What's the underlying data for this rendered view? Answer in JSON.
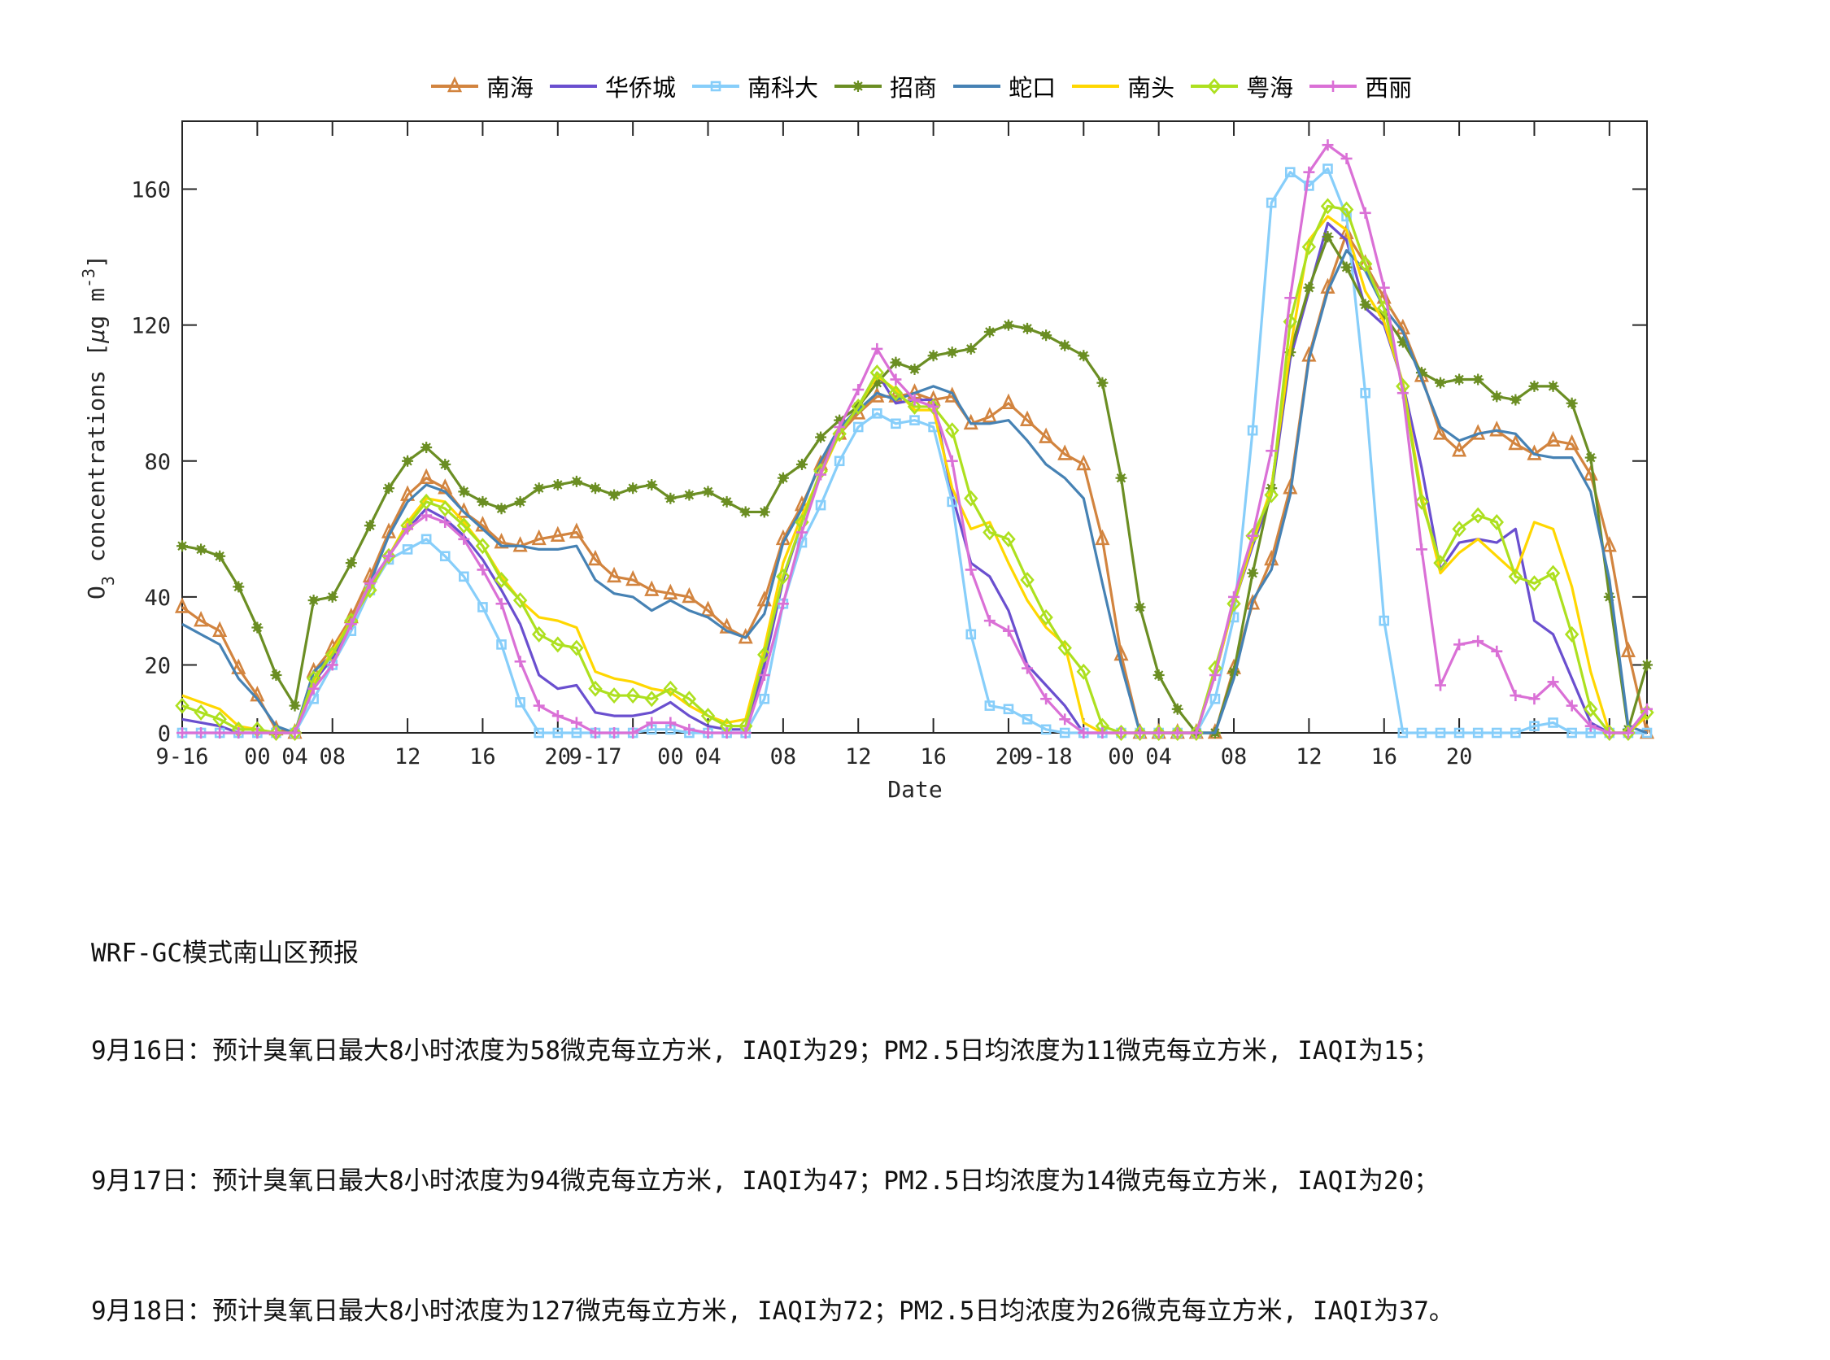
{
  "legend": [
    {
      "name": "南海",
      "color": "#D2843F",
      "marker": "triangle"
    },
    {
      "name": "华侨城",
      "color": "#6A4FCF",
      "marker": "none"
    },
    {
      "name": "南科大",
      "color": "#87CEFA",
      "marker": "square"
    },
    {
      "name": "招商",
      "color": "#6B8E23",
      "marker": "star"
    },
    {
      "name": "蛇口",
      "color": "#4682B4",
      "marker": "none"
    },
    {
      "name": "南头",
      "color": "#FFD700",
      "marker": "none"
    },
    {
      "name": "粤海",
      "color": "#ADE01F",
      "marker": "diamond"
    },
    {
      "name": "西丽",
      "color": "#DA70D6",
      "marker": "plus"
    }
  ],
  "report": {
    "title": "WRF-GC模式南山区预报",
    "lines": [
      "9月16日：预计臭氧日最大8小时浓度为58微克每立方米, IAQI为29；PM2.5日均浓度为11微克每立方米, IAQI为15；",
      "9月17日：预计臭氧日最大8小时浓度为94微克每立方米, IAQI为47；PM2.5日均浓度为14微克每立方米, IAQI为20；",
      "9月18日：预计臭氧日最大8小时浓度为127微克每立方米, IAQI为72；PM2.5日均浓度为26微克每立方米, IAQI为37。"
    ]
  },
  "chart_data": {
    "type": "line",
    "title": "",
    "xlabel": "Date",
    "ylabel": "O3 concentrations [μg m-3]",
    "ylim": [
      0,
      180
    ],
    "yticks": [
      0,
      20,
      40,
      80,
      120,
      160
    ],
    "xlim": [
      0,
      78
    ],
    "xtick_positions": [
      0,
      4,
      8,
      12,
      16,
      20,
      24,
      28,
      32,
      36,
      40,
      44,
      48,
      52,
      56,
      60,
      64,
      68,
      72,
      76
    ],
    "xtick_labels": [
      {
        "x": 0,
        "label": "9-16"
      },
      {
        "x": 4,
        "label": "00"
      },
      {
        "x": 6,
        "label": "04"
      },
      {
        "x": 8,
        "label": "08"
      },
      {
        "x": 12,
        "label": "12"
      },
      {
        "x": 16,
        "label": "16"
      },
      {
        "x": 20,
        "label": "20"
      },
      {
        "x": 22,
        "label": "9-17"
      },
      {
        "x": 26,
        "label": "00"
      },
      {
        "x": 28,
        "label": "04"
      },
      {
        "x": 32,
        "label": "08"
      },
      {
        "x": 36,
        "label": "12"
      },
      {
        "x": 40,
        "label": "16"
      },
      {
        "x": 44,
        "label": "20"
      },
      {
        "x": 46,
        "label": "9-18"
      },
      {
        "x": 50,
        "label": "00"
      },
      {
        "x": 52,
        "label": "04"
      },
      {
        "x": 56,
        "label": "08"
      },
      {
        "x": 60,
        "label": "12"
      },
      {
        "x": 64,
        "label": "16"
      },
      {
        "x": 68,
        "label": "20"
      }
    ],
    "grid": false,
    "legend_position": "top",
    "x": [
      0,
      1,
      2,
      3,
      4,
      5,
      6,
      7,
      8,
      9,
      10,
      11,
      12,
      13,
      14,
      15,
      16,
      17,
      18,
      19,
      20,
      21,
      22,
      23,
      24,
      25,
      26,
      27,
      28,
      29,
      30,
      31,
      32,
      33,
      34,
      35,
      36,
      37,
      38,
      39,
      40,
      41,
      42,
      43,
      44,
      45,
      46,
      47,
      48,
      49,
      50,
      51,
      52,
      53,
      54,
      55,
      56,
      57,
      58,
      59,
      60,
      61,
      62,
      63,
      64,
      65,
      66,
      67,
      68,
      69,
      70,
      71,
      72,
      73,
      74,
      75,
      76,
      77,
      78
    ],
    "series": [
      {
        "name": "南海",
        "values": [
          37,
          33,
          30,
          19,
          11,
          1,
          0,
          18,
          25,
          34,
          46,
          59,
          70,
          75,
          72,
          65,
          61,
          56,
          55,
          57,
          58,
          59,
          51,
          46,
          45,
          42,
          41,
          40,
          36,
          31,
          28,
          39,
          57,
          67,
          79,
          88,
          94,
          99,
          99,
          100,
          98,
          99,
          91,
          93,
          97,
          92,
          87,
          82,
          79,
          57,
          23,
          0,
          0,
          0,
          0,
          0,
          19,
          38,
          51,
          72,
          111,
          131,
          147,
          138,
          128,
          119,
          105,
          88,
          83,
          88,
          89,
          85,
          82,
          86,
          85,
          76,
          55,
          24,
          0
        ]
      },
      {
        "name": "华侨城",
        "values": [
          4,
          3,
          2,
          0,
          0,
          0,
          0,
          15,
          22,
          32,
          44,
          52,
          60,
          66,
          63,
          58,
          51,
          42,
          32,
          17,
          13,
          14,
          6,
          5,
          5,
          6,
          9,
          5,
          2,
          1,
          1,
          20,
          45,
          62,
          77,
          89,
          96,
          106,
          97,
          98,
          98,
          70,
          50,
          46,
          36,
          20,
          14,
          8,
          0,
          0,
          0,
          0,
          0,
          0,
          0,
          17,
          38,
          55,
          70,
          110,
          130,
          150,
          145,
          125,
          120,
          103,
          78,
          48,
          56,
          57,
          56,
          60,
          33,
          29,
          16,
          3,
          0,
          0,
          0
        ]
      },
      {
        "name": "南科大",
        "values": [
          0,
          0,
          0,
          0,
          0,
          0,
          0,
          10,
          20,
          30,
          42,
          51,
          54,
          57,
          52,
          46,
          37,
          26,
          9,
          0,
          0,
          0,
          0,
          0,
          0,
          1,
          1,
          0,
          0,
          0,
          0,
          10,
          38,
          56,
          67,
          80,
          90,
          94,
          91,
          92,
          90,
          68,
          29,
          8,
          7,
          4,
          1,
          0,
          0,
          0,
          0,
          0,
          0,
          0,
          0,
          10,
          34,
          89,
          156,
          165,
          161,
          166,
          152,
          100,
          33,
          0,
          0,
          0,
          0,
          0,
          0,
          0,
          2,
          3,
          0,
          0,
          0,
          0,
          0
        ]
      },
      {
        "name": "招商",
        "values": [
          55,
          54,
          52,
          43,
          31,
          17,
          8,
          39,
          40,
          50,
          61,
          72,
          80,
          84,
          79,
          71,
          68,
          66,
          68,
          72,
          73,
          74,
          72,
          70,
          72,
          73,
          69,
          70,
          71,
          68,
          65,
          65,
          75,
          79,
          87,
          92,
          96,
          103,
          109,
          107,
          111,
          112,
          113,
          118,
          120,
          119,
          117,
          114,
          111,
          103,
          75,
          37,
          17,
          7,
          0,
          0,
          18,
          47,
          72,
          112,
          131,
          146,
          137,
          126,
          123,
          115,
          106,
          103,
          104,
          104,
          99,
          98,
          102,
          102,
          97,
          81,
          40,
          1,
          20
        ]
      },
      {
        "name": "蛇口",
        "values": [
          32,
          29,
          26,
          16,
          10,
          2,
          0,
          18,
          23,
          32,
          44,
          58,
          68,
          73,
          71,
          65,
          60,
          55,
          55,
          54,
          54,
          55,
          45,
          41,
          40,
          36,
          39,
          36,
          34,
          30,
          28,
          35,
          56,
          66,
          80,
          90,
          95,
          100,
          98,
          100,
          102,
          100,
          91,
          91,
          92,
          86,
          79,
          75,
          69,
          44,
          20,
          0,
          0,
          0,
          0,
          0,
          16,
          39,
          48,
          70,
          110,
          130,
          142,
          136,
          125,
          118,
          104,
          90,
          86,
          88,
          89,
          88,
          82,
          81,
          81,
          71,
          45,
          2,
          0
        ]
      },
      {
        "name": "南头",
        "values": [
          11,
          9,
          7,
          2,
          1,
          0,
          0,
          15,
          24,
          33,
          42,
          52,
          62,
          69,
          68,
          62,
          55,
          46,
          39,
          34,
          33,
          31,
          18,
          16,
          15,
          13,
          12,
          8,
          5,
          3,
          4,
          25,
          50,
          64,
          76,
          88,
          96,
          105,
          101,
          95,
          95,
          72,
          60,
          62,
          50,
          39,
          31,
          26,
          3,
          0,
          0,
          0,
          0,
          0,
          0,
          17,
          38,
          56,
          72,
          113,
          145,
          152,
          148,
          130,
          121,
          103,
          70,
          47,
          53,
          57,
          52,
          47,
          62,
          60,
          43,
          18,
          0,
          0,
          5
        ]
      },
      {
        "name": "粤海",
        "values": [
          8,
          6,
          4,
          1,
          1,
          0,
          0,
          16,
          23,
          33,
          42,
          52,
          61,
          68,
          66,
          61,
          55,
          45,
          39,
          29,
          26,
          25,
          13,
          11,
          11,
          10,
          13,
          10,
          5,
          2,
          2,
          23,
          46,
          62,
          77,
          88,
          96,
          106,
          100,
          96,
          96,
          89,
          69,
          59,
          57,
          45,
          34,
          25,
          18,
          2,
          0,
          0,
          0,
          0,
          0,
          19,
          38,
          58,
          70,
          121,
          143,
          155,
          154,
          138,
          125,
          102,
          68,
          50,
          60,
          64,
          62,
          46,
          44,
          47,
          29,
          7,
          0,
          0,
          6
        ]
      },
      {
        "name": "西丽",
        "values": [
          0,
          0,
          0,
          0,
          0,
          0,
          0,
          13,
          20,
          32,
          44,
          52,
          60,
          64,
          62,
          57,
          48,
          38,
          21,
          8,
          5,
          3,
          0,
          0,
          0,
          3,
          3,
          1,
          0,
          0,
          0,
          17,
          38,
          59,
          76,
          90,
          101,
          113,
          104,
          98,
          96,
          80,
          48,
          33,
          30,
          19,
          10,
          4,
          0,
          0,
          0,
          0,
          0,
          0,
          0,
          17,
          40,
          58,
          83,
          128,
          165,
          173,
          169,
          153,
          131,
          100,
          54,
          14,
          26,
          27,
          24,
          11,
          10,
          15,
          8,
          2,
          0,
          0,
          7
        ]
      }
    ]
  }
}
